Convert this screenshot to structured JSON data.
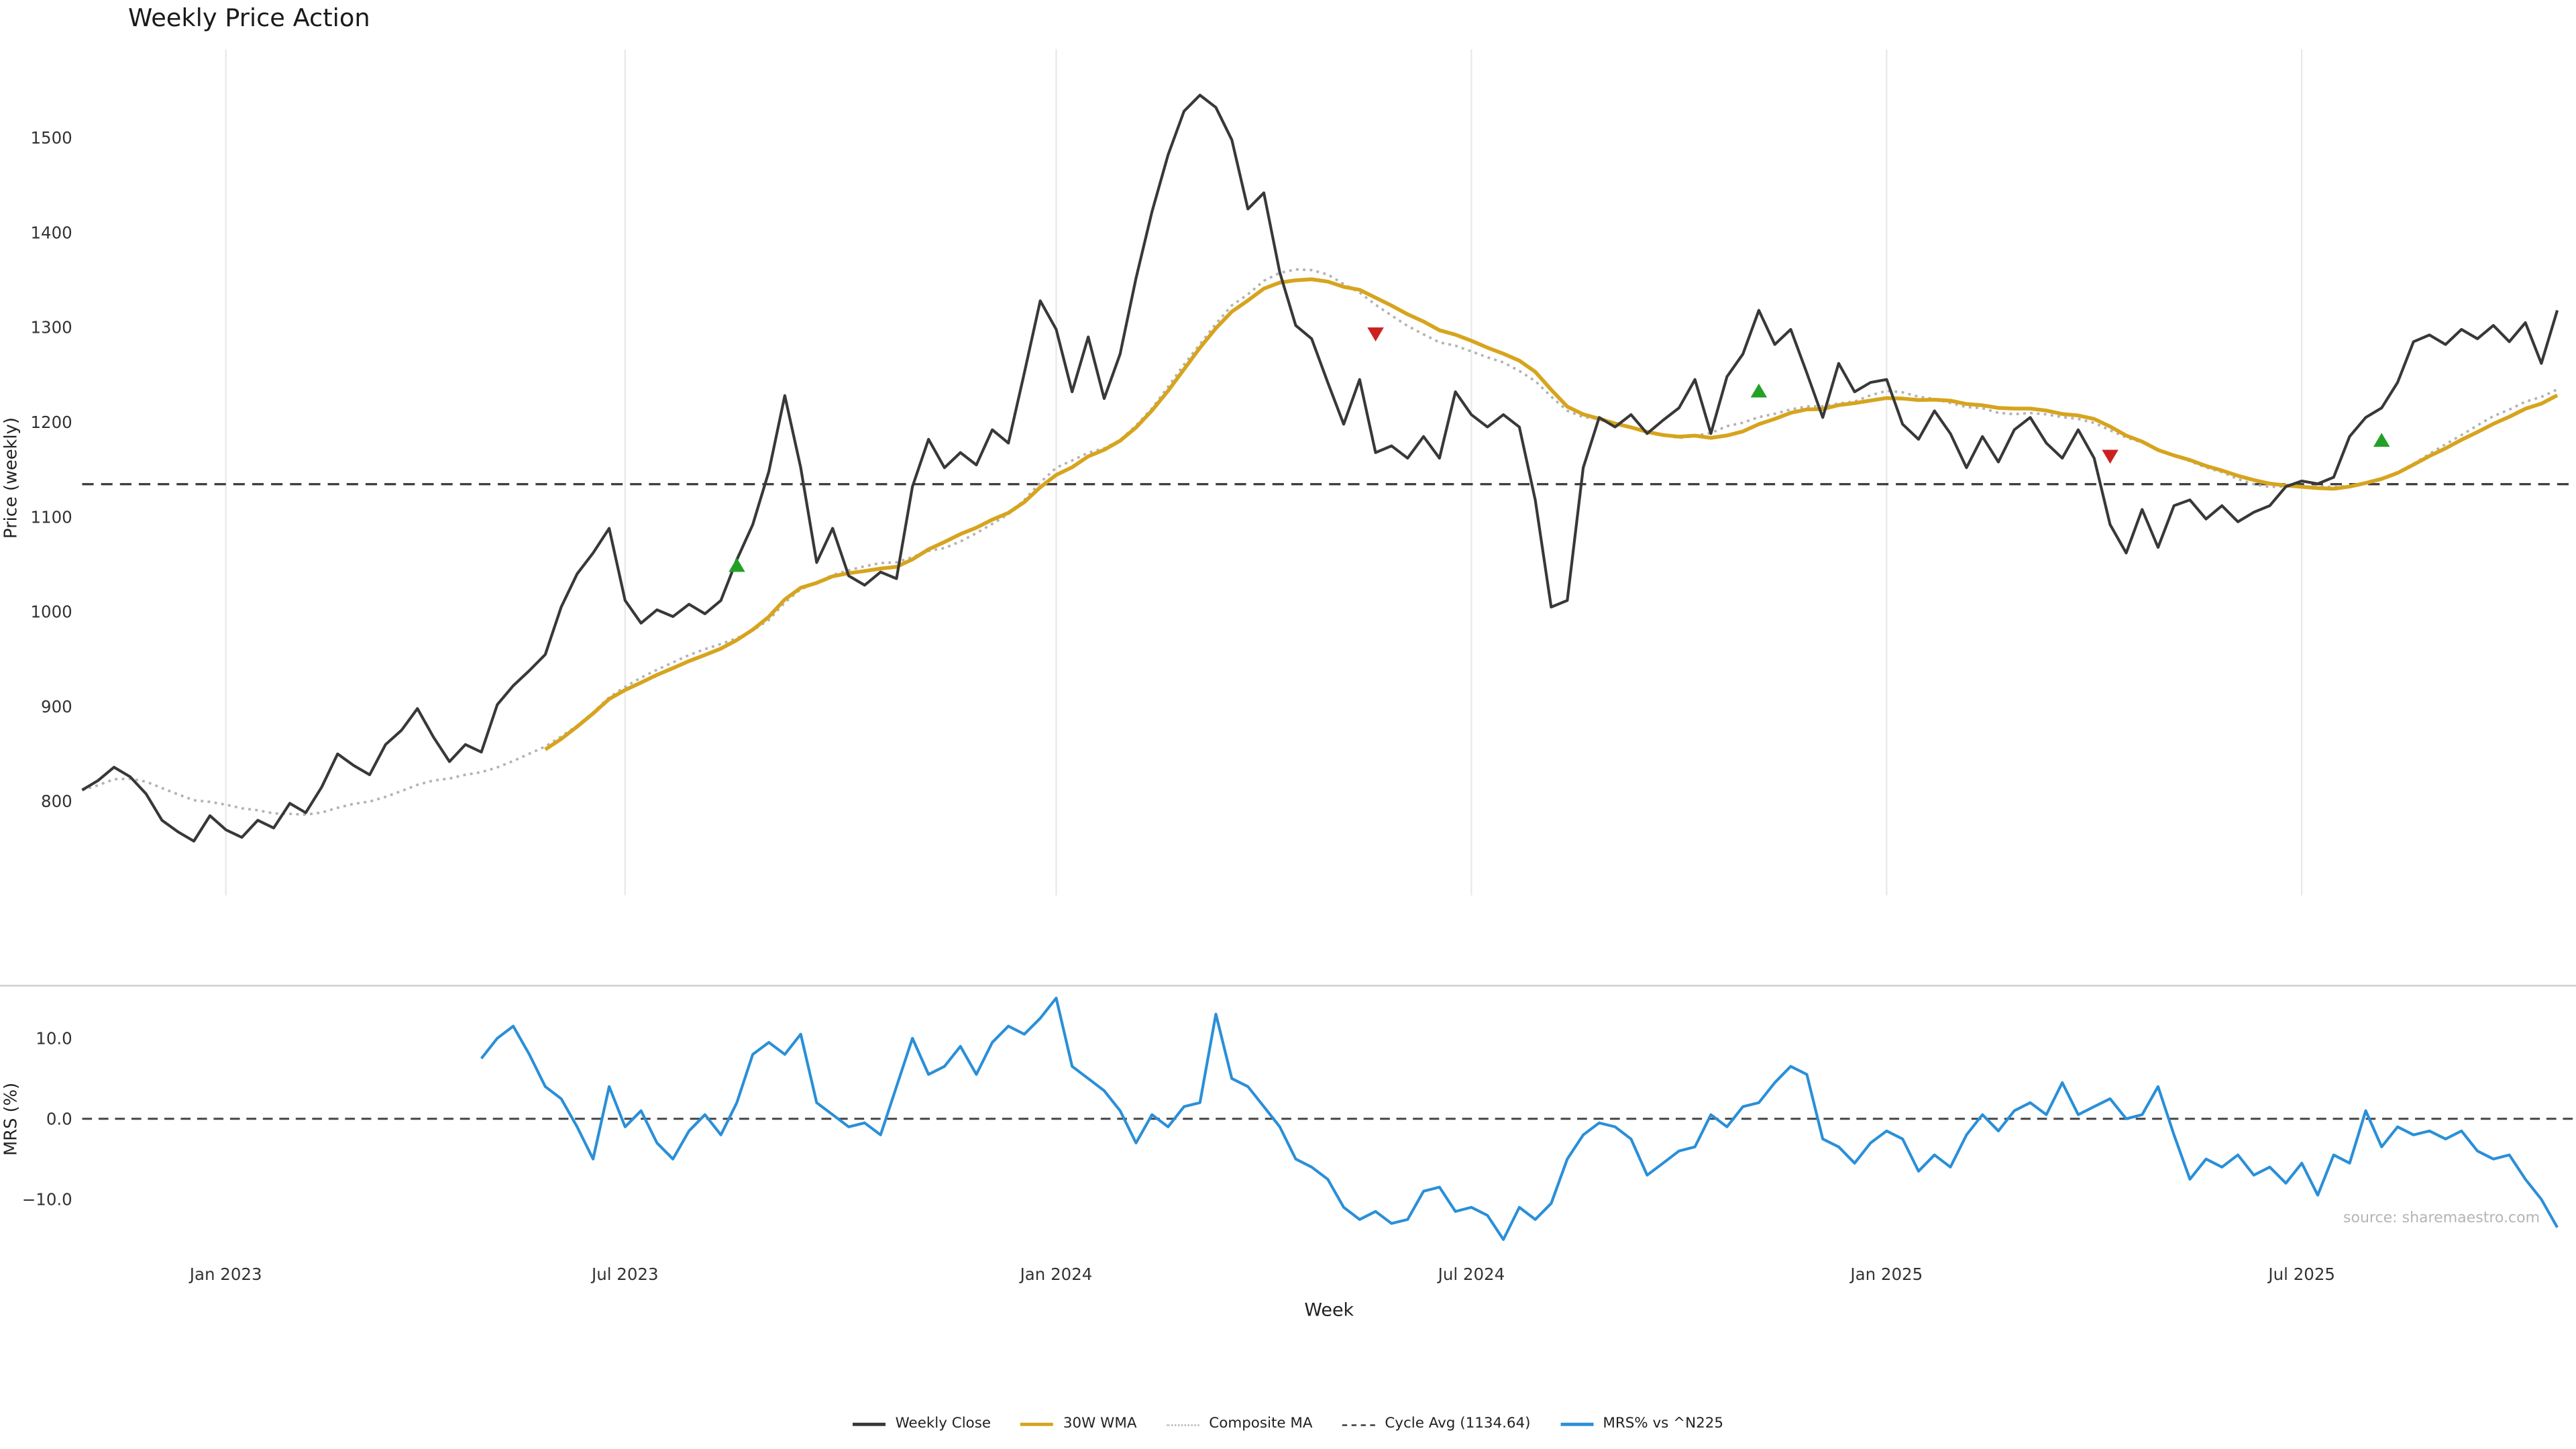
{
  "chart_data": {
    "type": "line",
    "title": "Weekly Price Action",
    "xlabel": "Week",
    "ylabel_price": "Price (weekly)",
    "ylabel_mrs": "MRS (%)",
    "source": "source: sharemaestro.com",
    "cycle_avg": 1134.64,
    "wma_window": 30,
    "legend": {
      "weekly_close": "Weekly Close",
      "wma": "30W WMA",
      "composite": "Composite MA",
      "cycle": "Cycle Avg (1134.64)",
      "mrs": "MRS% vs ^N225"
    },
    "colors": {
      "close": "#383838",
      "wma": "#d6a41e",
      "composite": "#b3b3b3",
      "cycle": "#3a3a3a",
      "mrs": "#2a8fd8",
      "buy": "#23a127",
      "sell": "#cc2020",
      "grid": "#e8e8e8",
      "spine": "#d0d0d0"
    },
    "x_ticks": [
      {
        "index": 9,
        "label": "Jan 2023"
      },
      {
        "index": 34,
        "label": "Jul 2023"
      },
      {
        "index": 61,
        "label": "Jan 2024"
      },
      {
        "index": 87,
        "label": "Jul 2024"
      },
      {
        "index": 113,
        "label": "Jan 2025"
      },
      {
        "index": 139,
        "label": "Jul 2025"
      }
    ],
    "price_ticks": [
      {
        "v": 800,
        "label": "800"
      },
      {
        "v": 900,
        "label": "900"
      },
      {
        "v": 1000,
        "label": "1000"
      },
      {
        "v": 1100,
        "label": "1100"
      },
      {
        "v": 1200,
        "label": "1200"
      },
      {
        "v": 1300,
        "label": "1300"
      },
      {
        "v": 1400,
        "label": "1400"
      },
      {
        "v": 1500,
        "label": "1500"
      }
    ],
    "mrs_ticks": [
      {
        "v": 10,
        "label": "10.0"
      },
      {
        "v": 0,
        "label": "0.0"
      },
      {
        "v": -10,
        "label": "−10.0"
      }
    ],
    "weekly_close": [
      812,
      822,
      836,
      826,
      808,
      780,
      768,
      758,
      785,
      770,
      762,
      780,
      772,
      798,
      788,
      815,
      850,
      838,
      828,
      860,
      875,
      898,
      868,
      842,
      860,
      852,
      902,
      922,
      938,
      955,
      1005,
      1040,
      1062,
      1088,
      1012,
      988,
      1002,
      995,
      1008,
      998,
      1012,
      1055,
      1092,
      1148,
      1228,
      1152,
      1052,
      1088,
      1038,
      1028,
      1042,
      1035,
      1132,
      1182,
      1152,
      1168,
      1155,
      1192,
      1178,
      1252,
      1328,
      1298,
      1232,
      1290,
      1225,
      1272,
      1352,
      1422,
      1482,
      1528,
      1545,
      1532,
      1498,
      1425,
      1442,
      1358,
      1302,
      1288,
      1242,
      1198,
      1245,
      1168,
      1175,
      1162,
      1185,
      1162,
      1232,
      1208,
      1195,
      1208,
      1195,
      1118,
      1005,
      1012,
      1152,
      1205,
      1195,
      1208,
      1188,
      1202,
      1215,
      1245,
      1188,
      1248,
      1272,
      1318,
      1282,
      1298,
      1252,
      1205,
      1262,
      1232,
      1242,
      1245,
      1198,
      1182,
      1212,
      1188,
      1152,
      1185,
      1158,
      1192,
      1205,
      1178,
      1162,
      1192,
      1162,
      1092,
      1062,
      1108,
      1068,
      1112,
      1118,
      1098,
      1112,
      1095,
      1105,
      1112,
      1132,
      1138,
      1135,
      1142,
      1185,
      1205,
      1215,
      1242,
      1285,
      1292,
      1282,
      1298,
      1288,
      1302,
      1285,
      1305,
      1262,
      1318
    ],
    "mrs": {
      "start_index": 25,
      "values": [
        7.5,
        10,
        11.5,
        8,
        4,
        2.5,
        -1,
        -5,
        4,
        -1,
        1,
        -3,
        -5,
        -1.5,
        0.5,
        -2,
        2,
        8,
        9.5,
        8,
        10.5,
        2,
        0.5,
        -1,
        -0.5,
        -2,
        4,
        10,
        5.5,
        6.5,
        9,
        5.5,
        9.5,
        11.5,
        10.5,
        12.5,
        15,
        6.5,
        5,
        3.5,
        1,
        -3,
        0.5,
        -1,
        1.5,
        2,
        13,
        5,
        4,
        1.5,
        -1,
        -5,
        -6,
        -7.5,
        -11,
        -12.5,
        -11.5,
        -13,
        -12.5,
        -9,
        -8.5,
        -11.5,
        -11,
        -12,
        -15,
        -11,
        -12.5,
        -10.5,
        -5,
        -2,
        -0.5,
        -1,
        -2.5,
        -7,
        -5.5,
        -4,
        -3.5,
        0.5,
        -1,
        1.5,
        2,
        4.5,
        6.5,
        5.5,
        -2.5,
        -3.5,
        -5.5,
        -3,
        -1.5,
        -2.5,
        -6.5,
        -4.5,
        -6,
        -2,
        0.5,
        -1.5,
        1,
        2,
        0.5,
        4.5,
        0.5,
        1.5,
        2.5,
        0,
        0.5,
        4,
        -2,
        -7.5,
        -5,
        -6,
        -4.5,
        -7,
        -6,
        -8,
        -5.5,
        -9.5,
        -4.5,
        -5.5,
        1,
        -3.5,
        -1,
        -2,
        -1.5,
        -2.5,
        -1.5,
        -4,
        -5,
        -4.5,
        -7.5,
        -10,
        -13.5
      ]
    },
    "signals": [
      {
        "index": 41,
        "price": 1049,
        "type": "buy"
      },
      {
        "index": 81,
        "price": 1293,
        "type": "sell"
      },
      {
        "index": 105,
        "price": 1233,
        "type": "buy"
      },
      {
        "index": 127,
        "price": 1164,
        "type": "sell"
      },
      {
        "index": 144,
        "price": 1181,
        "type": "buy"
      }
    ]
  }
}
